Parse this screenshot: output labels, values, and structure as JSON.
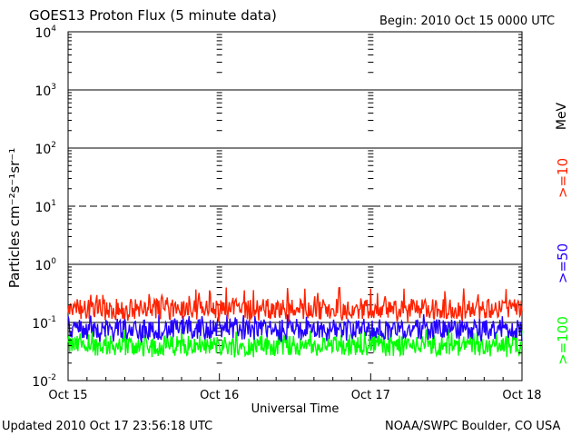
{
  "header": {
    "title": "GOES13 Proton Flux (5 minute data)",
    "begin": "Begin: 2010 Oct 15 0000 UTC"
  },
  "footer": {
    "updated": "Updated 2010 Oct 17 23:56:18 UTC",
    "credit": "NOAA/SWPC Boulder, CO USA"
  },
  "chart_data": {
    "type": "line",
    "title": "GOES13 Proton Flux (5 minute data)",
    "xlabel": "Universal Time",
    "ylabel": "Particles cm⁻²s⁻¹sr⁻¹",
    "ylabel_side": "MeV",
    "y_scale": "log",
    "ylim_exponents": [
      -2,
      4
    ],
    "yticks": [
      {
        "base": "10",
        "exp": "-2"
      },
      {
        "base": "10",
        "exp": "-1"
      },
      {
        "base": "10",
        "exp": "0"
      },
      {
        "base": "10",
        "exp": "1"
      },
      {
        "base": "10",
        "exp": "2"
      },
      {
        "base": "10",
        "exp": "3"
      },
      {
        "base": "10",
        "exp": "4"
      }
    ],
    "xticks": [
      "Oct 15",
      "Oct 16",
      "Oct 17",
      "Oct 18"
    ],
    "xlim_days": [
      0,
      3
    ],
    "threshold_line_y": 10,
    "grid": true,
    "series": [
      {
        "name": ">=10",
        "color": "#ff2200",
        "typical_flux": 0.17,
        "min_flux": 0.1,
        "max_flux": 0.4
      },
      {
        "name": ">=50",
        "color": "#2200ff",
        "typical_flux": 0.075,
        "min_flux": 0.045,
        "max_flux": 0.14
      },
      {
        "name": ">=100",
        "color": "#00ff00",
        "typical_flux": 0.04,
        "min_flux": 0.025,
        "max_flux": 0.08
      }
    ]
  }
}
